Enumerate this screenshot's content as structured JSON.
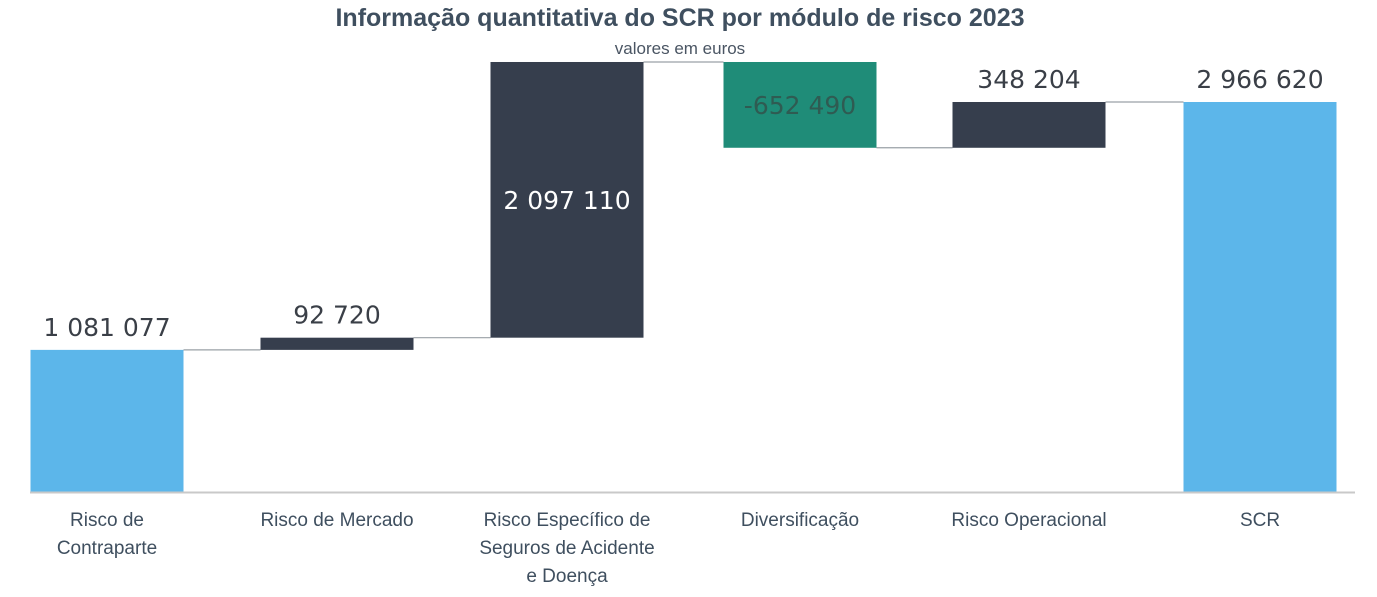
{
  "chart_data": {
    "type": "waterfall",
    "title": "Informação quantitativa do SCR por módulo de risco 2023",
    "subtitle": "valores em euros",
    "categories": [
      [
        "Risco de",
        "Contraparte"
      ],
      [
        "Risco de Mercado"
      ],
      [
        "Risco Específico de",
        "Seguros de Acidente",
        "e Doença"
      ],
      [
        "Diversificação"
      ],
      [
        "Risco Operacional"
      ],
      [
        "SCR"
      ]
    ],
    "values": [
      1081077,
      92720,
      2097110,
      -652490,
      348204,
      2966620
    ],
    "labels": [
      "1 081 077",
      "92 720",
      "2 097 110",
      "-652 490",
      "348 204",
      "2 966 620"
    ],
    "kinds": [
      "total",
      "increase",
      "increase",
      "decrease",
      "increase",
      "total"
    ],
    "colors": {
      "total": "#5cb6ea",
      "increase": "#363e4d",
      "decrease": "#1f8c78",
      "connector": "#9aa0a6",
      "axis": "#c9c9c9"
    },
    "ylim": [
      0,
      3300000
    ],
    "grid": false,
    "legend": "none"
  }
}
